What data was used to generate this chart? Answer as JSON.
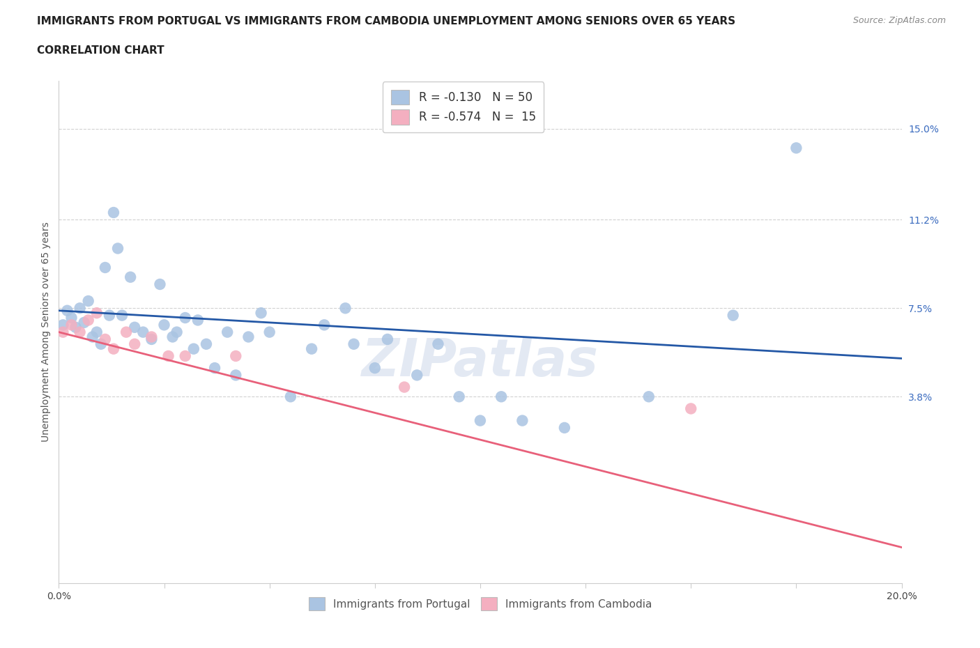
{
  "title_line1": "IMMIGRANTS FROM PORTUGAL VS IMMIGRANTS FROM CAMBODIA UNEMPLOYMENT AMONG SENIORS OVER 65 YEARS",
  "title_line2": "CORRELATION CHART",
  "source": "Source: ZipAtlas.com",
  "ylabel": "Unemployment Among Seniors over 65 years",
  "xlim": [
    0.0,
    0.2
  ],
  "ylim": [
    -0.04,
    0.17
  ],
  "xticks": [
    0.0,
    0.025,
    0.05,
    0.075,
    0.1,
    0.125,
    0.15,
    0.175,
    0.2
  ],
  "xticklabels": [
    "0.0%",
    "",
    "",
    "",
    "",
    "",
    "",
    "",
    "20.0%"
  ],
  "ytick_labels": [
    "3.8%",
    "7.5%",
    "11.2%",
    "15.0%"
  ],
  "ytick_vals": [
    0.038,
    0.075,
    0.112,
    0.15
  ],
  "portugal_color": "#aac4e2",
  "cambodia_color": "#f4afc0",
  "trend_portugal_color": "#2458a6",
  "trend_cambodia_color": "#e8607a",
  "legend_label1": "R = -0.130   N = 50",
  "legend_label2": "R = -0.574   N =  15",
  "legend_bottom_label1": "Immigrants from Portugal",
  "legend_bottom_label2": "Immigrants from Cambodia",
  "portugal_x": [
    0.001,
    0.002,
    0.003,
    0.004,
    0.005,
    0.006,
    0.007,
    0.008,
    0.009,
    0.01,
    0.011,
    0.012,
    0.013,
    0.014,
    0.015,
    0.017,
    0.018,
    0.02,
    0.022,
    0.024,
    0.025,
    0.027,
    0.028,
    0.03,
    0.032,
    0.033,
    0.035,
    0.037,
    0.04,
    0.042,
    0.045,
    0.048,
    0.05,
    0.055,
    0.06,
    0.063,
    0.068,
    0.07,
    0.075,
    0.078,
    0.085,
    0.09,
    0.095,
    0.1,
    0.105,
    0.11,
    0.12,
    0.14,
    0.16,
    0.175
  ],
  "portugal_y": [
    0.068,
    0.074,
    0.071,
    0.067,
    0.075,
    0.069,
    0.078,
    0.063,
    0.065,
    0.06,
    0.092,
    0.072,
    0.115,
    0.1,
    0.072,
    0.088,
    0.067,
    0.065,
    0.062,
    0.085,
    0.068,
    0.063,
    0.065,
    0.071,
    0.058,
    0.07,
    0.06,
    0.05,
    0.065,
    0.047,
    0.063,
    0.073,
    0.065,
    0.038,
    0.058,
    0.068,
    0.075,
    0.06,
    0.05,
    0.062,
    0.047,
    0.06,
    0.038,
    0.028,
    0.038,
    0.028,
    0.025,
    0.038,
    0.072,
    0.142
  ],
  "cambodia_x": [
    0.001,
    0.003,
    0.005,
    0.007,
    0.009,
    0.011,
    0.013,
    0.016,
    0.018,
    0.022,
    0.026,
    0.03,
    0.042,
    0.082,
    0.15
  ],
  "cambodia_y": [
    0.065,
    0.068,
    0.065,
    0.07,
    0.073,
    0.062,
    0.058,
    0.065,
    0.06,
    0.063,
    0.055,
    0.055,
    0.055,
    0.042,
    0.033
  ],
  "background_color": "#ffffff",
  "grid_color": "#cccccc",
  "axis_color": "#cccccc",
  "title_fontsize": 11,
  "label_fontsize": 10,
  "tick_fontsize": 10,
  "watermark": "ZIPatlas",
  "watermark_color": "#cdd8ea",
  "right_tick_color": "#3a6bbf"
}
